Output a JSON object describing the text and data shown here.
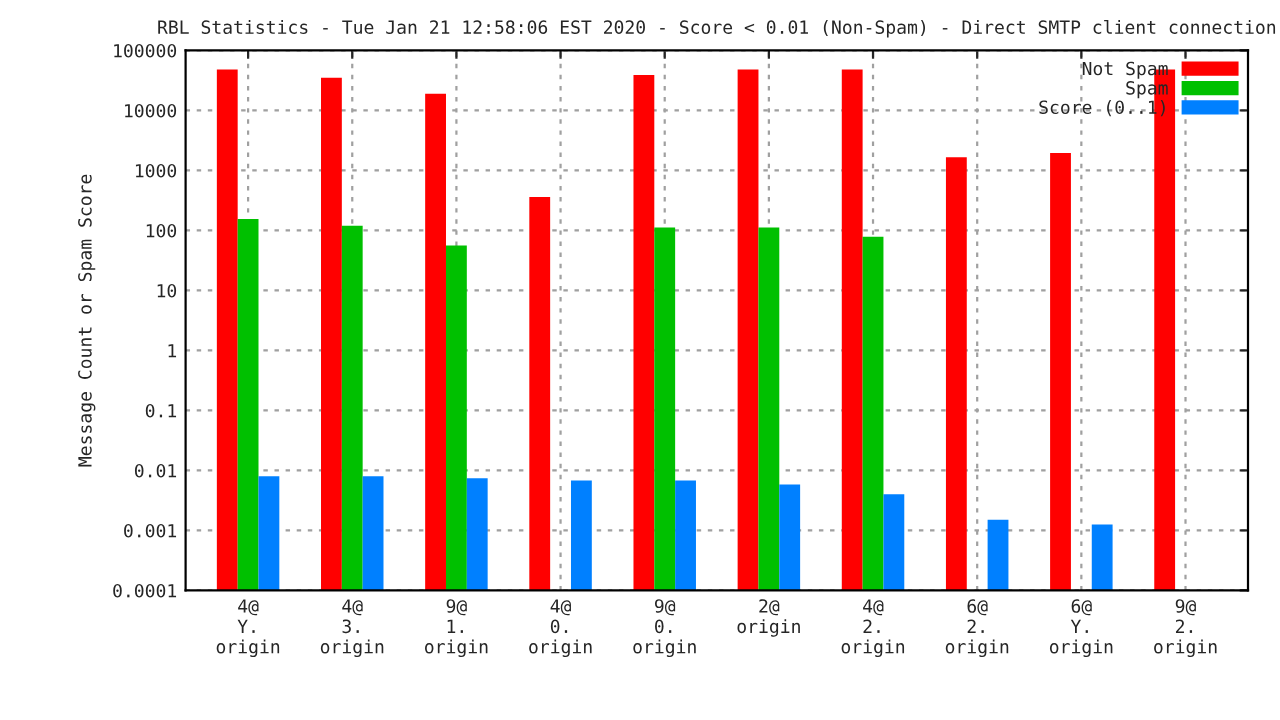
{
  "chart_data": {
    "type": "bar",
    "title": "RBL Statistics - Tue Jan 21 12:58:06 EST 2020 - Score < 0.01 (Non-Spam) - Direct SMTP client connection",
    "ylabel": "Message Count or Spam Score",
    "categories": [
      "4@\nY.\norigin",
      "4@\n3.\norigin",
      "9@\n1.\norigin",
      "4@\n0.\norigin",
      "9@\n0.\norigin",
      "2@\norigin",
      "4@\n2.\norigin",
      "6@\n2.\norigin",
      "6@\nY.\norigin",
      "9@\n2.\norigin"
    ],
    "series": [
      {
        "name": "Not Spam",
        "color": "#ff0000",
        "values": [
          48000,
          35000,
          19000,
          360,
          39000,
          48000,
          48000,
          1650,
          1950,
          48000
        ]
      },
      {
        "name": "Spam",
        "color": "#00c000",
        "values": [
          155,
          120,
          56,
          null,
          112,
          112,
          78,
          null,
          null,
          null
        ]
      },
      {
        "name": "Score (0..1)",
        "color": "#0080ff",
        "values": [
          0.008,
          0.008,
          0.0074,
          0.0068,
          0.0068,
          0.0058,
          0.004,
          0.0015,
          0.00126,
          null
        ]
      }
    ],
    "log": "y",
    "ylim": [
      0.0001,
      100000
    ],
    "yticks": [
      0.0001,
      0.001,
      0.01,
      0.1,
      1,
      10,
      100,
      1000,
      10000,
      100000
    ],
    "grid": true,
    "legend": "top right"
  }
}
